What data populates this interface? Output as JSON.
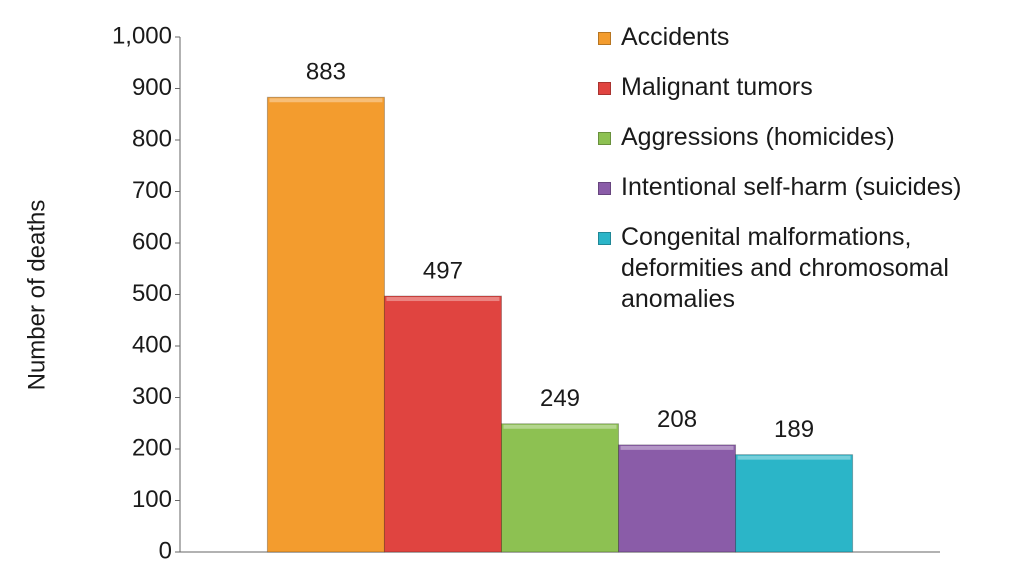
{
  "chart_data": {
    "type": "bar",
    "y_label": "Number of deaths",
    "categories": [
      null
    ],
    "series": [
      {
        "name": "Accidents",
        "color": "#f39c2e",
        "values": [
          883
        ]
      },
      {
        "name": "Malignant tumors",
        "color": "#e04440",
        "values": [
          497
        ]
      },
      {
        "name": "Aggressions (homicides)",
        "color": "#8dc152",
        "values": [
          249
        ]
      },
      {
        "name": "Intentional self-harm (suicides)",
        "color": "#8a5ca8",
        "values": [
          208
        ]
      },
      {
        "name": "Congenital malformations, deformities and chromosomal anomalies",
        "color": "#2bb5c8",
        "values": [
          189
        ]
      }
    ],
    "ylim": [
      0,
      1000
    ],
    "yticks": [
      0,
      100,
      200,
      300,
      400,
      500,
      600,
      700,
      800,
      900,
      {
        "value": 1000,
        "label": "1,000"
      }
    ],
    "legend": "right"
  }
}
